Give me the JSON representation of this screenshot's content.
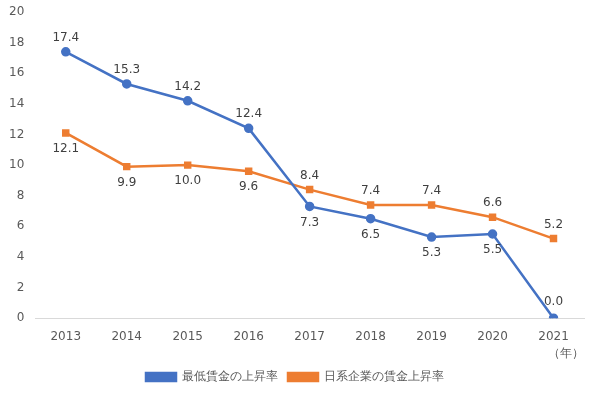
{
  "chart_data": {
    "type": "line",
    "categories": [
      "2013",
      "2014",
      "2015",
      "2016",
      "2017",
      "2018",
      "2019",
      "2020",
      "2021"
    ],
    "xlabel": "（年）",
    "series": [
      {
        "name": "最低賃金の上昇率",
        "color": "#4472c4",
        "marker": "circle",
        "values": [
          17.4,
          15.3,
          14.2,
          12.4,
          7.3,
          6.5,
          5.3,
          5.5,
          0.0
        ],
        "value_labels": [
          "17.4",
          "15.3",
          "14.2",
          "12.4",
          "7.3",
          "6.5",
          "5.3",
          "5.5",
          "0.0"
        ]
      },
      {
        "name": "日系企業の賃金上昇率",
        "color": "#ed7d31",
        "marker": "square",
        "values": [
          12.1,
          9.9,
          10.0,
          9.6,
          8.4,
          7.4,
          7.4,
          6.6,
          5.2
        ],
        "value_labels": [
          "12.1",
          "9.9",
          "10.0",
          "9.6",
          "8.4",
          "7.4",
          "7.4",
          "6.6",
          "5.2"
        ]
      }
    ],
    "ylim": [
      0,
      20
    ],
    "yticks": [
      0,
      2,
      4,
      6,
      8,
      10,
      12,
      14,
      16,
      18,
      20
    ],
    "grid": false,
    "legend": "bottom",
    "data_labels": true
  }
}
